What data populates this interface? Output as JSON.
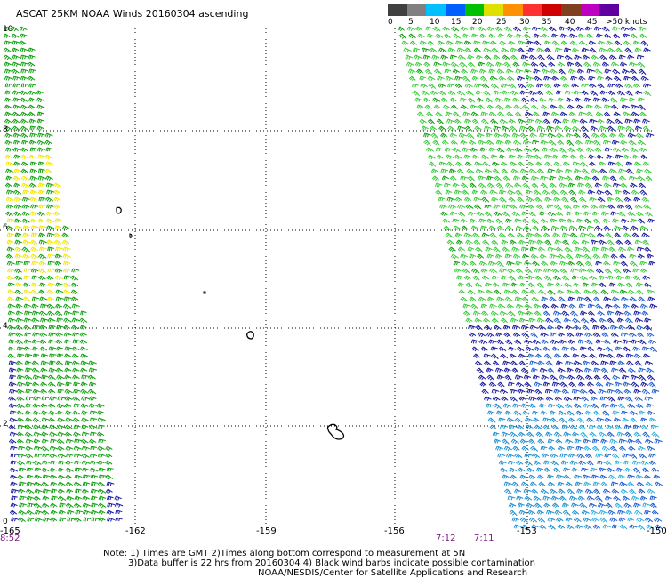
{
  "title": "ASCAT 25KM NOAA Winds 20160304 ascending",
  "scale": {
    "labels": [
      "0",
      "5",
      "10",
      "15",
      "20",
      "25",
      "30",
      "35",
      "40",
      "45",
      ">50 knots"
    ],
    "colors": [
      "#404040",
      "#808080",
      "#00c0ff",
      "#0060ff",
      "#00c000",
      "#e0e000",
      "#ff9000",
      "#ff3030",
      "#d00000",
      "#804020",
      "#c000c0",
      "#6000a0"
    ]
  },
  "axes": {
    "x_ticks": [
      "-165",
      "-162",
      "-159",
      "-156",
      "-153",
      "-150"
    ],
    "y_ticks": [
      "10",
      "8",
      "6",
      "4",
      "2",
      "0"
    ]
  },
  "time_labels": [
    "8:52",
    "7:12",
    "7:11"
  ],
  "notes": {
    "line1": "Note: 1) Times are GMT 2)Times along bottom correspond to measurement at 5N",
    "line2": "3)Data buffer is 22 hrs from 20160304 4) Black wind barbs indicate possible contamination",
    "line3": "NOAA/NESDIS/Center for Satellite Applications and Research"
  },
  "colors": {
    "light_green": "#3ccc3c",
    "green": "#10a010",
    "yellow": "#f2e600",
    "blue": "#1a1aa0",
    "mid_blue": "#2060d0",
    "light_blue": "#2090d0",
    "cyan": "#30b0e0"
  }
}
